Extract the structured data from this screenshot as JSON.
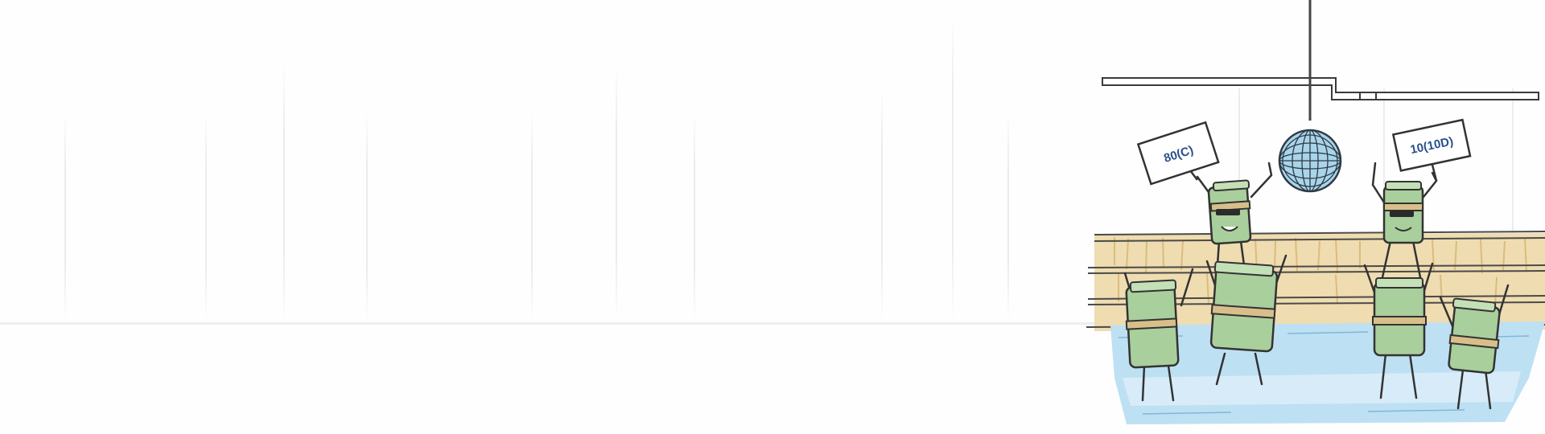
{
  "illustration": {
    "left_sign": {
      "text": "80(C)"
    },
    "right_sign": {
      "text": "10(10D)"
    }
  },
  "colors": {
    "money_green": "#a9cf9c",
    "money_dark": "#3f4f3a",
    "band_tan": "#d8bf8a",
    "water_blue": "#bde0f3",
    "wood": "#ecd6a4",
    "sign_text": "#27508c"
  }
}
